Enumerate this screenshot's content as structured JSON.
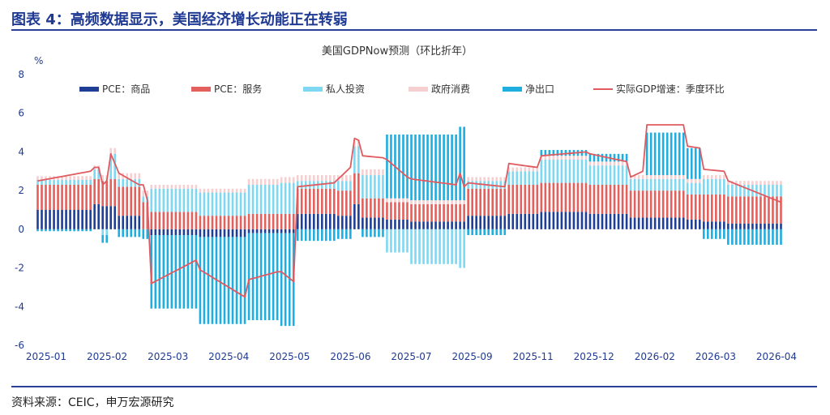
{
  "header": {
    "title": "图表 4：高频数据显示，美国经济增长动能正在转弱"
  },
  "footer": {
    "source": "资料来源：CEIC，申万宏源研究"
  },
  "colors": {
    "title_blue": "#1f3a93",
    "pce_goods": "#1f3e96",
    "pce_services": "#e4605d",
    "private_investment": "#7fd8f2",
    "gov_consumption": "#f6cfd0",
    "net_exports": "#1eaee0",
    "line_gdp": "#e05a5f"
  },
  "chart_data": {
    "type": "bar",
    "stacked": true,
    "title": "美国GDPNow预测（环比折年）",
    "ylabel": "%",
    "ylim": [
      -6,
      8
    ],
    "yticks": [
      -6,
      -4,
      -2,
      0,
      2,
      4,
      6,
      8
    ],
    "xtick_labels": [
      "2025-01",
      "2025-02",
      "2025-03",
      "2025-04",
      "2025-05",
      "2025-06",
      "2025-07",
      "2025-09",
      "2025-11",
      "2025-12",
      "2026-02",
      "2026-03",
      "2026-04"
    ],
    "legend": [
      {
        "name": "PCE：商品",
        "kind": "bar",
        "key": "pce_goods"
      },
      {
        "name": "PCE：服务",
        "kind": "bar",
        "key": "pce_services"
      },
      {
        "name": "私人投资",
        "kind": "bar",
        "key": "private_investment"
      },
      {
        "name": "政府消费",
        "kind": "bar",
        "key": "gov_consumption"
      },
      {
        "name": "净出口",
        "kind": "bar",
        "key": "net_exports"
      },
      {
        "name": "实际GDP增速：季度环比",
        "kind": "line",
        "key": "line_gdp"
      }
    ],
    "n_points": 184,
    "segments": [
      {
        "from": 0,
        "to": 14,
        "pce_goods": 1.0,
        "pce_services": 1.3,
        "private_investment": 0.25,
        "gov_consumption": 0.2,
        "net_exports": -0.1,
        "gdp_start": 2.5,
        "gdp_end": 3.0
      },
      {
        "from": 14,
        "to": 16,
        "pce_goods": 1.3,
        "pce_services": 1.3,
        "private_investment": 0.5,
        "gov_consumption": 0.2,
        "net_exports": 0.0,
        "gdp_start": 3.2,
        "gdp_end": 3.2
      },
      {
        "from": 16,
        "to": 18,
        "pce_goods": 1.2,
        "pce_services": 1.3,
        "private_investment": -0.3,
        "gov_consumption": 0.3,
        "net_exports": -0.4,
        "gdp_start": 2.3,
        "gdp_end": 2.5
      },
      {
        "from": 18,
        "to": 20,
        "pce_goods": 1.2,
        "pce_services": 1.4,
        "private_investment": 1.3,
        "gov_consumption": 0.3,
        "net_exports": 0.0,
        "gdp_start": 3.9,
        "gdp_end": 3.4
      },
      {
        "from": 20,
        "to": 26,
        "pce_goods": 0.7,
        "pce_services": 1.5,
        "private_investment": 0.4,
        "gov_consumption": 0.3,
        "net_exports": -0.4,
        "gdp_start": 2.9,
        "gdp_end": 2.3
      },
      {
        "from": 26,
        "to": 28,
        "pce_goods": 0.0,
        "pce_services": 1.4,
        "private_investment": 0.3,
        "gov_consumption": 0.3,
        "net_exports": -0.5,
        "gdp_start": 2.3,
        "gdp_end": 1.5
      },
      {
        "from": 28,
        "to": 40,
        "pce_goods": -0.3,
        "pce_services": 0.9,
        "private_investment": 1.2,
        "gov_consumption": 0.2,
        "net_exports": -3.8,
        "gdp_start": -2.8,
        "gdp_end": -1.6
      },
      {
        "from": 40,
        "to": 52,
        "pce_goods": -0.4,
        "pce_services": 0.7,
        "private_investment": 1.2,
        "gov_consumption": 0.2,
        "net_exports": -4.5,
        "gdp_start": -2.1,
        "gdp_end": -3.5
      },
      {
        "from": 52,
        "to": 60,
        "pce_goods": -0.2,
        "pce_services": 0.8,
        "private_investment": 1.5,
        "gov_consumption": 0.3,
        "net_exports": -4.5,
        "gdp_start": -2.6,
        "gdp_end": -2.2
      },
      {
        "from": 60,
        "to": 64,
        "pce_goods": -0.2,
        "pce_services": 0.8,
        "private_investment": 1.6,
        "gov_consumption": 0.3,
        "net_exports": -4.8,
        "gdp_start": -2.2,
        "gdp_end": -2.7
      },
      {
        "from": 64,
        "to": 74,
        "pce_goods": 0.8,
        "pce_services": 1.3,
        "private_investment": 0.4,
        "gov_consumption": 0.3,
        "net_exports": -0.6,
        "gdp_start": 2.2,
        "gdp_end": 2.4
      },
      {
        "from": 74,
        "to": 78,
        "pce_goods": 0.7,
        "pce_services": 1.3,
        "private_investment": 0.5,
        "gov_consumption": 0.3,
        "net_exports": -0.5,
        "gdp_start": 2.6,
        "gdp_end": 3.2
      },
      {
        "from": 78,
        "to": 80,
        "pce_goods": 1.3,
        "pce_services": 1.6,
        "private_investment": 1.4,
        "gov_consumption": 0.3,
        "net_exports": 0.0,
        "gdp_start": 4.7,
        "gdp_end": 4.6
      },
      {
        "from": 80,
        "to": 86,
        "pce_goods": 0.6,
        "pce_services": 1.0,
        "private_investment": 1.2,
        "gov_consumption": 0.3,
        "net_exports": -0.4,
        "gdp_start": 3.8,
        "gdp_end": 3.7
      },
      {
        "from": 86,
        "to": 92,
        "pce_goods": 0.5,
        "pce_services": 0.9,
        "private_investment": -1.2,
        "gov_consumption": 0.2,
        "net_exports": 3.3,
        "gdp_start": 3.6,
        "gdp_end": 2.7
      },
      {
        "from": 92,
        "to": 104,
        "pce_goods": 0.4,
        "pce_services": 0.9,
        "private_investment": -1.8,
        "gov_consumption": 0.2,
        "net_exports": 3.4,
        "gdp_start": 2.6,
        "gdp_end": 2.3
      },
      {
        "from": 104,
        "to": 106,
        "pce_goods": 0.4,
        "pce_services": 0.9,
        "private_investment": -2.0,
        "gov_consumption": 0.2,
        "net_exports": 3.8,
        "gdp_start": 2.9,
        "gdp_end": 2.2
      },
      {
        "from": 106,
        "to": 116,
        "pce_goods": 0.7,
        "pce_services": 1.4,
        "private_investment": 0.4,
        "gov_consumption": 0.2,
        "net_exports": -0.3,
        "gdp_start": 2.4,
        "gdp_end": 2.2
      },
      {
        "from": 116,
        "to": 124,
        "pce_goods": 0.8,
        "pce_services": 1.5,
        "private_investment": 0.7,
        "gov_consumption": 0.2,
        "net_exports": 0.0,
        "gdp_start": 3.4,
        "gdp_end": 3.2
      },
      {
        "from": 124,
        "to": 136,
        "pce_goods": 0.9,
        "pce_services": 1.5,
        "private_investment": 1.2,
        "gov_consumption": 0.2,
        "net_exports": 0.3,
        "gdp_start": 3.8,
        "gdp_end": 4.0
      },
      {
        "from": 136,
        "to": 146,
        "pce_goods": 0.8,
        "pce_services": 1.5,
        "private_investment": 1.0,
        "gov_consumption": 0.2,
        "net_exports": 0.4,
        "gdp_start": 3.9,
        "gdp_end": 3.5
      },
      {
        "from": 146,
        "to": 150,
        "pce_goods": 0.6,
        "pce_services": 1.4,
        "private_investment": 0.6,
        "gov_consumption": 0.2,
        "net_exports": 0.0,
        "gdp_start": 2.7,
        "gdp_end": 3.0
      },
      {
        "from": 150,
        "to": 160,
        "pce_goods": 0.6,
        "pce_services": 1.4,
        "private_investment": 0.6,
        "gov_consumption": 0.2,
        "net_exports": 2.2,
        "gdp_start": 5.4,
        "gdp_end": 5.4
      },
      {
        "from": 160,
        "to": 164,
        "pce_goods": 0.5,
        "pce_services": 1.3,
        "private_investment": 0.6,
        "gov_consumption": 0.2,
        "net_exports": 1.6,
        "gdp_start": 4.3,
        "gdp_end": 4.2
      },
      {
        "from": 164,
        "to": 170,
        "pce_goods": 0.4,
        "pce_services": 1.4,
        "private_investment": 0.8,
        "gov_consumption": 0.2,
        "net_exports": -0.5,
        "gdp_start": 3.1,
        "gdp_end": 3.0
      },
      {
        "from": 170,
        "to": 184,
        "pce_goods": 0.3,
        "pce_services": 1.4,
        "private_investment": 0.6,
        "gov_consumption": 0.2,
        "net_exports": -0.8,
        "gdp_start": 2.5,
        "gdp_end": 1.4
      }
    ]
  }
}
